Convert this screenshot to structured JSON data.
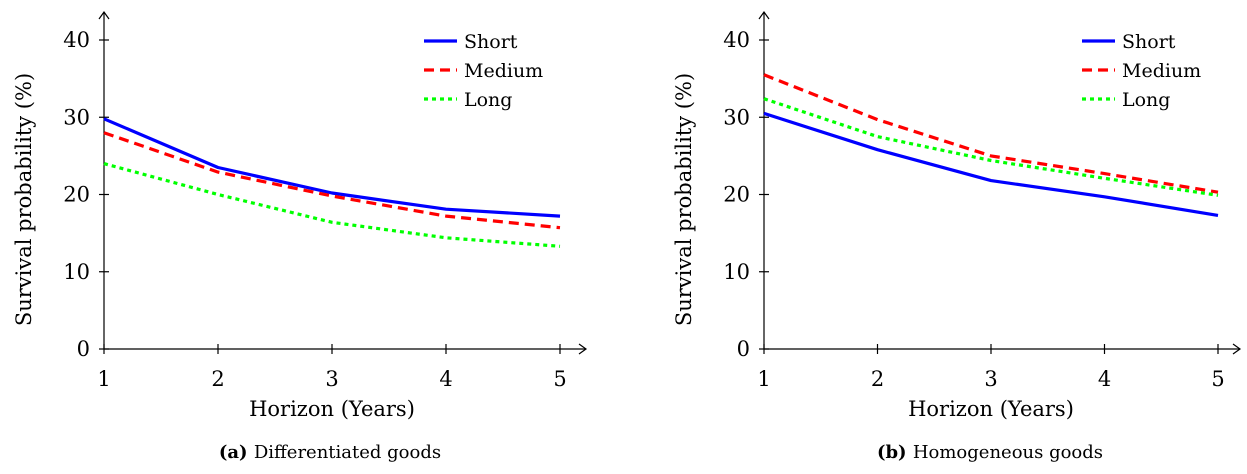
{
  "chart_data": [
    {
      "type": "line",
      "caption_tag": "(a)",
      "caption": "Differentiated goods",
      "xlabel": "Horizon (Years)",
      "ylabel": "Survival probability (%)",
      "x": [
        1,
        2,
        3,
        4,
        5
      ],
      "x_ticks": [
        "1",
        "2",
        "3",
        "4",
        "5"
      ],
      "y_ticks": [
        "0",
        "10",
        "20",
        "30",
        "40"
      ],
      "xlim": [
        1,
        5
      ],
      "ylim": [
        0,
        40
      ],
      "legend_position": "top-right",
      "grid": false,
      "series": [
        {
          "name": "Short",
          "values": [
            29.8,
            23.5,
            20.2,
            18.1,
            17.2
          ],
          "color": "#0000ff",
          "style": "solid"
        },
        {
          "name": "Medium",
          "values": [
            28.0,
            22.9,
            19.8,
            17.2,
            15.7
          ],
          "color": "#ff0000",
          "style": "dashed"
        },
        {
          "name": "Long",
          "values": [
            24.0,
            20.0,
            16.4,
            14.4,
            13.3
          ],
          "color": "#00ff00",
          "style": "dotted"
        }
      ]
    },
    {
      "type": "line",
      "caption_tag": "(b)",
      "caption": "Homogeneous goods",
      "xlabel": "Horizon (Years)",
      "ylabel": "Survival probability (%)",
      "x": [
        1,
        2,
        3,
        4,
        5
      ],
      "x_ticks": [
        "1",
        "2",
        "3",
        "4",
        "5"
      ],
      "y_ticks": [
        "0",
        "10",
        "20",
        "30",
        "40"
      ],
      "xlim": [
        1,
        5
      ],
      "ylim": [
        0,
        40
      ],
      "legend_position": "top-right",
      "grid": false,
      "series": [
        {
          "name": "Short",
          "values": [
            30.5,
            25.8,
            21.8,
            19.7,
            17.3
          ],
          "color": "#0000ff",
          "style": "solid"
        },
        {
          "name": "Medium",
          "values": [
            35.5,
            29.7,
            25.0,
            22.7,
            20.3
          ],
          "color": "#ff0000",
          "style": "dashed"
        },
        {
          "name": "Long",
          "values": [
            32.4,
            27.5,
            24.4,
            22.1,
            19.9
          ],
          "color": "#00ff00",
          "style": "dotted"
        }
      ]
    }
  ]
}
